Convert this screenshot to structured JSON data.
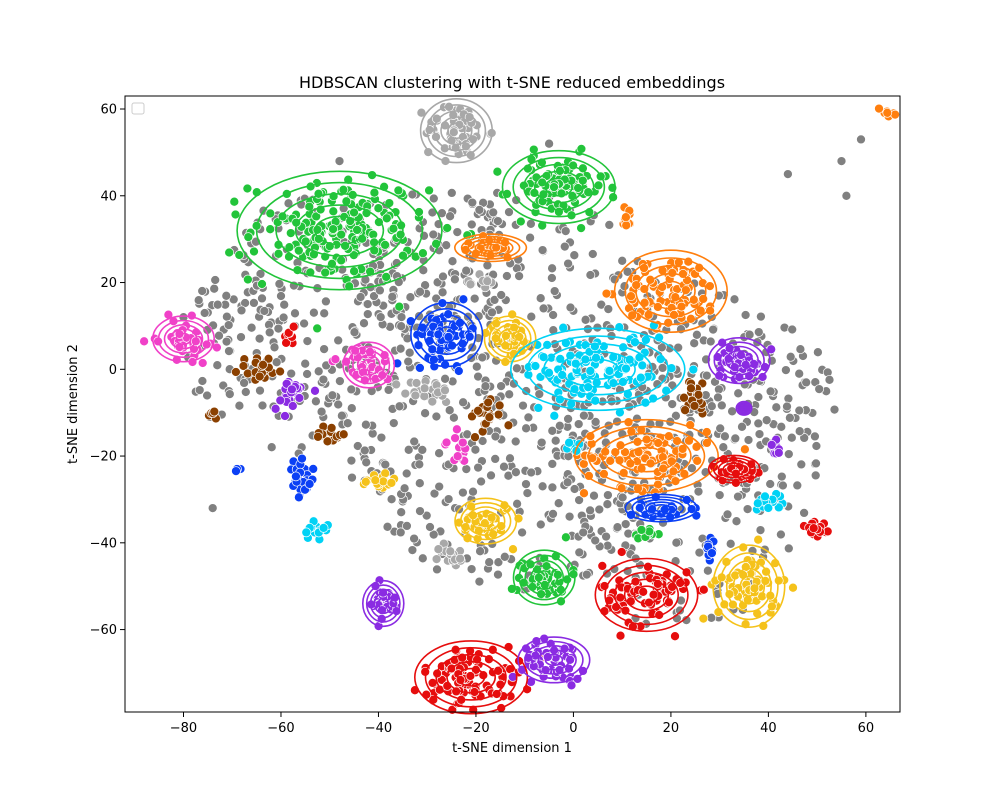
{
  "chart_data": {
    "type": "scatter",
    "title": "HDBSCAN clustering with t-SNE reduced embeddings",
    "xlabel": "t-SNE dimension 1",
    "ylabel": "t-SNE dimension 2",
    "xlim": [
      -92,
      67
    ],
    "ylim": [
      -79,
      63
    ],
    "xticks": [
      -80,
      -60,
      -40,
      -20,
      0,
      20,
      40,
      60
    ],
    "yticks": [
      -60,
      -40,
      -20,
      0,
      20,
      40,
      60
    ],
    "grid": false,
    "legend": {
      "placement": "top-left",
      "entries": []
    },
    "noise": {
      "color": "#808080",
      "regions": [
        {
          "cx": -12,
          "cy": -5,
          "rx": 38,
          "ry": 46,
          "n": 520
        },
        {
          "cx": 22,
          "cy": -20,
          "rx": 28,
          "ry": 40,
          "n": 260
        },
        {
          "cx": -55,
          "cy": 10,
          "rx": 20,
          "ry": 30,
          "n": 160
        },
        {
          "cx": -30,
          "cy": 25,
          "rx": 18,
          "ry": 18,
          "n": 90
        },
        {
          "cx": 40,
          "cy": -10,
          "rx": 14,
          "ry": 22,
          "n": 80
        },
        {
          "cx": -70,
          "cy": 5,
          "rx": 10,
          "ry": 18,
          "n": 50
        }
      ],
      "isolated_points": [
        [
          -80,
          12
        ],
        [
          -74,
          -32
        ],
        [
          44,
          45
        ],
        [
          55,
          48
        ],
        [
          59,
          53
        ],
        [
          56,
          40
        ],
        [
          10,
          25
        ],
        [
          -22,
          59
        ],
        [
          -5,
          52
        ],
        [
          -48,
          48
        ]
      ]
    },
    "clusters": [
      {
        "color": "#22c43a",
        "cx": -48,
        "cy": 32,
        "rx": 20,
        "ry": 13,
        "n": 180,
        "contour": true
      },
      {
        "color": "#22c43a",
        "cx": -3,
        "cy": 42,
        "rx": 11,
        "ry": 8,
        "n": 90,
        "contour": true
      },
      {
        "color": "#22c43a",
        "cx": -6,
        "cy": -48,
        "rx": 6,
        "ry": 6,
        "n": 50,
        "contour": true
      },
      {
        "color": "#22c43a",
        "cx": 15,
        "cy": -38,
        "rx": 3,
        "ry": 2,
        "n": 12,
        "contour": false
      },
      {
        "color": "#a8a8a8",
        "cx": -24,
        "cy": 55,
        "rx": 7,
        "ry": 7,
        "n": 60,
        "contour": true
      },
      {
        "color": "#a8a8a8",
        "cx": -18,
        "cy": 20,
        "rx": 2.5,
        "ry": 3,
        "n": 12,
        "contour": false
      },
      {
        "color": "#a8a8a8",
        "cx": -30,
        "cy": -5,
        "rx": 6,
        "ry": 3,
        "n": 25,
        "contour": false
      },
      {
        "color": "#a8a8a8",
        "cx": -25,
        "cy": -43,
        "rx": 3,
        "ry": 3,
        "n": 15,
        "contour": false
      },
      {
        "color": "#ff7f0e",
        "cx": -17,
        "cy": 28,
        "rx": 7,
        "ry": 3,
        "n": 30,
        "contour": true
      },
      {
        "color": "#ff7f0e",
        "cx": 11,
        "cy": 35,
        "rx": 2,
        "ry": 2.5,
        "n": 12,
        "contour": false
      },
      {
        "color": "#ff7f0e",
        "cx": 20,
        "cy": 18,
        "rx": 11,
        "ry": 9,
        "n": 90,
        "contour": true
      },
      {
        "color": "#ff7f0e",
        "cx": 15,
        "cy": -20,
        "rx": 14,
        "ry": 8,
        "n": 90,
        "contour": true
      },
      {
        "color": "#ff7f0e",
        "cx": 65,
        "cy": 59,
        "rx": 2.5,
        "ry": 1.5,
        "n": 8,
        "contour": false
      },
      {
        "color": "#0b40f5",
        "cx": -26,
        "cy": 8,
        "rx": 7,
        "ry": 7,
        "n": 60,
        "contour": true
      },
      {
        "color": "#0b40f5",
        "cx": -56,
        "cy": -26,
        "rx": 3,
        "ry": 5,
        "n": 25,
        "contour": false
      },
      {
        "color": "#0b40f5",
        "cx": -69,
        "cy": -23,
        "rx": 1,
        "ry": 1,
        "n": 4,
        "contour": false
      },
      {
        "color": "#0b40f5",
        "cx": 18,
        "cy": -32,
        "rx": 7,
        "ry": 3,
        "n": 25,
        "contour": true
      },
      {
        "color": "#0b40f5",
        "cx": 28,
        "cy": -42,
        "rx": 1.5,
        "ry": 3,
        "n": 10,
        "contour": false
      },
      {
        "color": "#f5c21a",
        "cx": -13,
        "cy": 7,
        "rx": 5,
        "ry": 5,
        "n": 35,
        "contour": true
      },
      {
        "color": "#f5c21a",
        "cx": -40,
        "cy": -26,
        "rx": 4,
        "ry": 2.5,
        "n": 20,
        "contour": false
      },
      {
        "color": "#f5c21a",
        "cx": -18,
        "cy": -35,
        "rx": 6,
        "ry": 5,
        "n": 40,
        "contour": true
      },
      {
        "color": "#f5c21a",
        "cx": 36,
        "cy": -50,
        "rx": 7,
        "ry": 9,
        "n": 70,
        "contour": true
      },
      {
        "color": "#00d2f5",
        "cx": 5,
        "cy": 0,
        "rx": 17,
        "ry": 9,
        "n": 120,
        "contour": true
      },
      {
        "color": "#00d2f5",
        "cx": 0,
        "cy": -18,
        "rx": 2,
        "ry": 1.5,
        "n": 8,
        "contour": false
      },
      {
        "color": "#00d2f5",
        "cx": -53,
        "cy": -37,
        "rx": 3,
        "ry": 2.5,
        "n": 15,
        "contour": false
      },
      {
        "color": "#00d2f5",
        "cx": 40,
        "cy": -30,
        "rx": 3,
        "ry": 3,
        "n": 15,
        "contour": false
      },
      {
        "color": "#f041c8",
        "cx": -80,
        "cy": 7,
        "rx": 6,
        "ry": 5,
        "n": 40,
        "contour": true
      },
      {
        "color": "#f041c8",
        "cx": -42,
        "cy": 1,
        "rx": 5,
        "ry": 5,
        "n": 35,
        "contour": true
      },
      {
        "color": "#f041c8",
        "cx": -24,
        "cy": -19,
        "rx": 2.5,
        "ry": 4,
        "n": 15,
        "contour": false
      },
      {
        "color": "#f041c8",
        "cx": -49,
        "cy": 2,
        "rx": 0.6,
        "ry": 0.6,
        "n": 2,
        "contour": false
      },
      {
        "color": "#e60d0d",
        "cx": -58,
        "cy": 8,
        "rx": 1.6,
        "ry": 2.5,
        "n": 10,
        "contour": false
      },
      {
        "color": "#e60d0d",
        "cx": 33,
        "cy": -23,
        "rx": 5,
        "ry": 3,
        "n": 30,
        "contour": true
      },
      {
        "color": "#e60d0d",
        "cx": 50,
        "cy": -37,
        "rx": 3,
        "ry": 3,
        "n": 20,
        "contour": false
      },
      {
        "color": "#e60d0d",
        "cx": 15,
        "cy": -52,
        "rx": 10,
        "ry": 8,
        "n": 80,
        "contour": true
      },
      {
        "color": "#e60d0d",
        "cx": -21,
        "cy": -71,
        "rx": 11,
        "ry": 8,
        "n": 90,
        "contour": true
      },
      {
        "color": "#8a2be2",
        "cx": 34,
        "cy": 2,
        "rx": 6,
        "ry": 5,
        "n": 40,
        "contour": true
      },
      {
        "color": "#8a2be2",
        "cx": 35,
        "cy": -9,
        "rx": 1.5,
        "ry": 1.5,
        "n": 3,
        "contour": true
      },
      {
        "color": "#8a2be2",
        "cx": -58,
        "cy": -6,
        "rx": 4,
        "ry": 4,
        "n": 25,
        "contour": false
      },
      {
        "color": "#8a2be2",
        "cx": 41,
        "cy": -18,
        "rx": 2,
        "ry": 2.5,
        "n": 10,
        "contour": false
      },
      {
        "color": "#8a2be2",
        "cx": -39,
        "cy": -54,
        "rx": 4,
        "ry": 5,
        "n": 30,
        "contour": true
      },
      {
        "color": "#8a2be2",
        "cx": -4,
        "cy": -67,
        "rx": 7,
        "ry": 5,
        "n": 50,
        "contour": true
      },
      {
        "color": "#8b4000",
        "cx": -64,
        "cy": 0,
        "rx": 5,
        "ry": 3.5,
        "n": 25,
        "contour": false
      },
      {
        "color": "#8b4000",
        "cx": -74,
        "cy": -10,
        "rx": 1.5,
        "ry": 1.5,
        "n": 6,
        "contour": false
      },
      {
        "color": "#8b4000",
        "cx": -50,
        "cy": -15,
        "rx": 3,
        "ry": 2.5,
        "n": 15,
        "contour": false
      },
      {
        "color": "#8b4000",
        "cx": -18,
        "cy": -11,
        "rx": 4,
        "ry": 5,
        "n": 25,
        "contour": false
      },
      {
        "color": "#8b4000",
        "cx": 25,
        "cy": -6,
        "rx": 3,
        "ry": 5,
        "n": 20,
        "contour": false
      }
    ]
  }
}
